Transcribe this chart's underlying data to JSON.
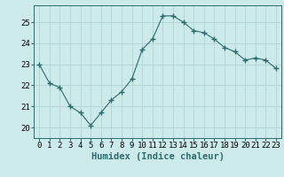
{
  "xlabel": "Humidex (Indice chaleur)",
  "x": [
    0,
    1,
    2,
    3,
    4,
    5,
    6,
    7,
    8,
    9,
    10,
    11,
    12,
    13,
    14,
    15,
    16,
    17,
    18,
    19,
    20,
    21,
    22,
    23
  ],
  "y": [
    23.0,
    22.1,
    21.9,
    21.0,
    20.7,
    20.1,
    20.7,
    21.3,
    21.7,
    22.3,
    23.7,
    24.2,
    25.3,
    25.3,
    25.0,
    24.6,
    24.5,
    24.2,
    23.8,
    23.6,
    23.2,
    23.3,
    23.2,
    22.8
  ],
  "ylim": [
    19.5,
    25.8
  ],
  "yticks": [
    20,
    21,
    22,
    23,
    24,
    25
  ],
  "background_color": "#cceaea",
  "grid_color": "#aacece",
  "line_color": "#2e6b6b",
  "marker_color": "#2e6b6b",
  "xlabel_fontsize": 7.5,
  "tick_fontsize": 6.5
}
